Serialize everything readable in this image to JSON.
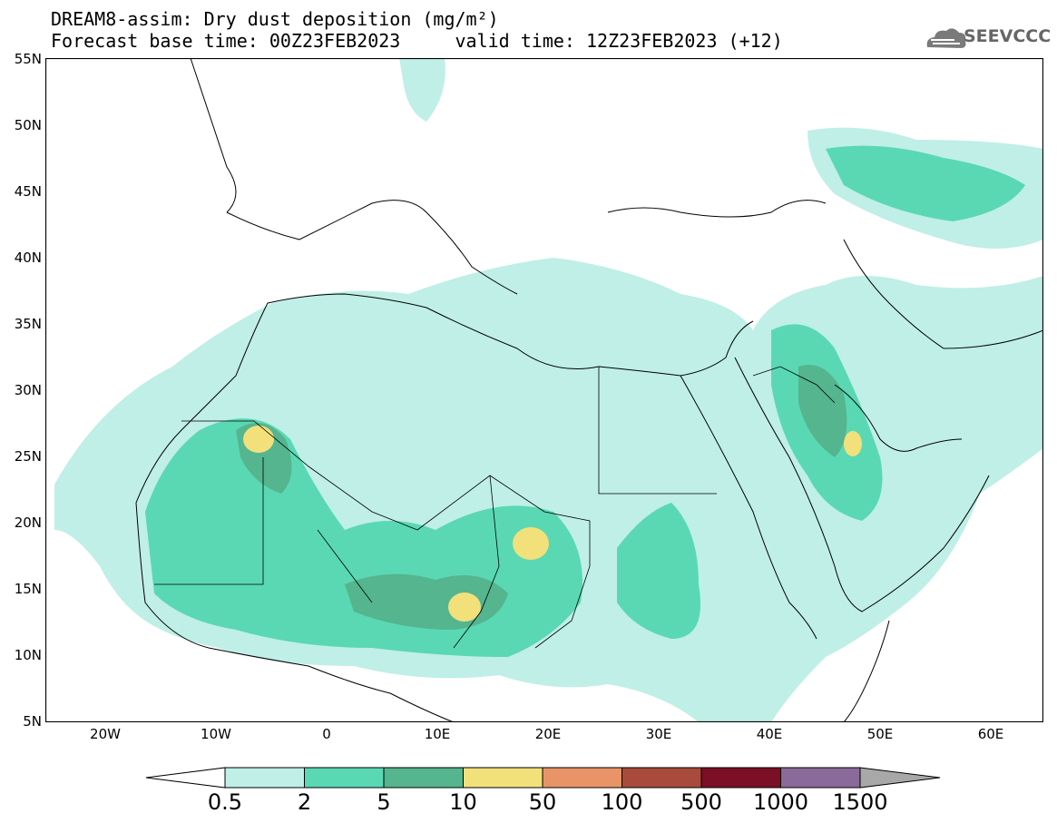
{
  "title": {
    "line1": "DREAM8-assim: Dry dust deposition (mg/m²)",
    "line2": "Forecast base time: 00Z23FEB2023     valid time: 12Z23FEB2023 (+12)"
  },
  "logo": {
    "text": "SEEVCCC",
    "icon": "cloud-logo-icon"
  },
  "map": {
    "lat_labels": [
      "55N",
      "50N",
      "45N",
      "40N",
      "35N",
      "30N",
      "25N",
      "20N",
      "15N",
      "10N",
      "5N"
    ],
    "lon_labels": [
      "20W",
      "10W",
      "0",
      "10E",
      "20E",
      "30E",
      "40E",
      "50E",
      "60E"
    ],
    "extent": {
      "lon": [
        -25,
        65
      ],
      "lat": [
        5,
        55
      ]
    }
  },
  "colorbar": {
    "labels": [
      "0.5",
      "2",
      "5",
      "10",
      "50",
      "100",
      "500",
      "1000",
      "1500"
    ],
    "colors": [
      "#bfefe6",
      "#5ad8b3",
      "#54b58f",
      "#f2e07a",
      "#e89468",
      "#a84b3c",
      "#7a0f25",
      "#8a6a9a",
      "#a8a8a8"
    ],
    "under_color": "#ffffff"
  }
}
